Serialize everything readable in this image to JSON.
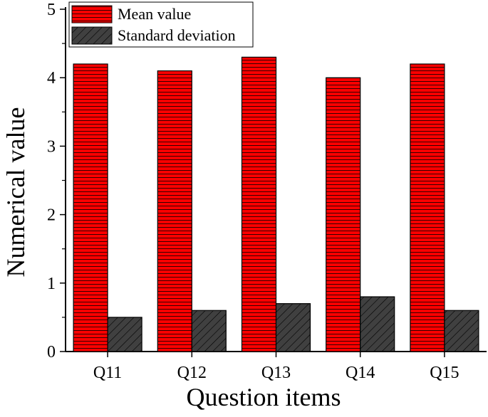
{
  "chart_data": {
    "type": "bar",
    "categories": [
      "Q11",
      "Q12",
      "Q13",
      "Q14",
      "Q15"
    ],
    "series": [
      {
        "name": "Mean value",
        "values": [
          4.2,
          4.1,
          4.3,
          4.0,
          4.2
        ],
        "color": "#ff0000",
        "pattern": "horizontal-lines"
      },
      {
        "name": "Standard deviation",
        "values": [
          0.5,
          0.6,
          0.7,
          0.8,
          0.6
        ],
        "color": "#404040",
        "pattern": "diagonal-hatch"
      }
    ],
    "title": "",
    "xlabel": "Question items",
    "ylabel": "Numerical value",
    "ylim": [
      0,
      5
    ],
    "yticks": [
      "0",
      "1",
      "2",
      "3",
      "4",
      "5"
    ],
    "grid": false,
    "legend_position": "top-left"
  }
}
